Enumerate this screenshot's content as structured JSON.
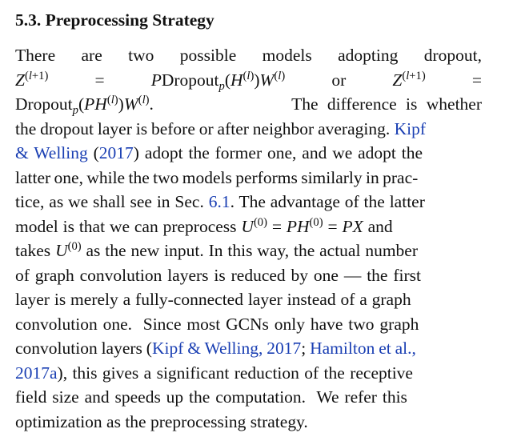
{
  "section": {
    "number": "5.3.",
    "title": "Preprocessing Strategy"
  },
  "paragraph": {
    "l1_words": [
      "There",
      "are",
      "two",
      "possible",
      "models",
      "adopting",
      "dropout,"
    ],
    "or_word": "or",
    "dropout_word": "Dropout",
    "p_sub": "p",
    "the_difference": "The difference is whether",
    "l3": "the dropout layer is before or after neighbor averaging.",
    "kipf": "Kipf",
    "l4_a": "& Welling",
    "l4_year": "2017",
    "l4_b": ") adopt the former one, and we adopt the",
    "l5": "latter one, while the two models performs similarly in prac-",
    "l6_a": "tice, as we shall see in Sec.",
    "l6_ref": "6.1",
    "l6_b": ". The advantage of the latter",
    "l7_a": "model is that we can preprocess",
    "l7_and": "and",
    "l8_a": "takes",
    "l8_b": "as the new input. In this way, the actual number",
    "l9": "of graph convolution layers is reduced by one — the first",
    "l10": "layer is merely a fully-connected layer instead of a graph",
    "l11": "convolution one.  Since most GCNs only have two graph",
    "l12_a": "convolution layers (",
    "l12_cite1": "Kipf & Welling, 2017",
    "l12_sep": "; ",
    "l12_cite2": "Hamilton et al.,",
    "l13_cite": "2017a",
    "l13_b": "), this gives a significant reduction of the receptive",
    "l14": "field size and speeds up the computation.  We refer this",
    "l15": "optimization as the preprocessing strategy."
  },
  "colors": {
    "link": "#1a3fb3",
    "text": "#111111"
  }
}
